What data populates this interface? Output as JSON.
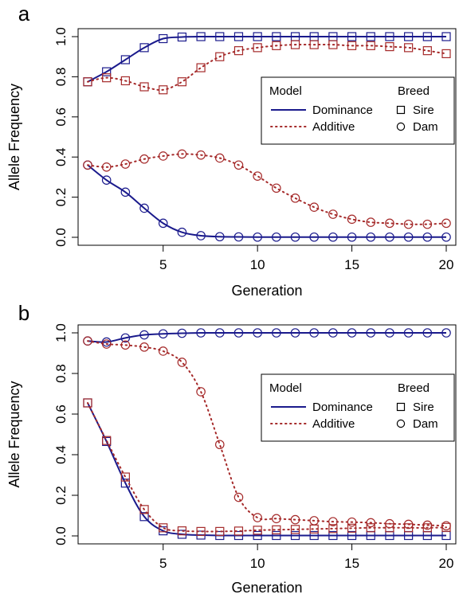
{
  "figure": {
    "colors": {
      "dominance": "#1a1a8c",
      "additive": "#a52a2a"
    }
  },
  "chart_data": [
    {
      "panel_label": "a",
      "type": "line",
      "xlabel": "Generation",
      "ylabel": "Allele Frequency",
      "xlim": [
        1,
        20
      ],
      "ylim": [
        0,
        1
      ],
      "xticks": [
        "5",
        "10",
        "15",
        "20"
      ],
      "yticks": [
        "0.0",
        "0.2",
        "0.4",
        "0.6",
        "0.8",
        "1.0"
      ],
      "grid": false,
      "legend": {
        "placement": "right",
        "model_title": "Model",
        "breed_title": "Breed",
        "model_items": [
          {
            "label": "Dominance",
            "style": "solid",
            "color": "#1a1a8c"
          },
          {
            "label": "Additive",
            "style": "dotted",
            "color": "#a52a2a"
          }
        ],
        "breed_items": [
          {
            "label": "Sire",
            "marker": "square"
          },
          {
            "label": "Dam",
            "marker": "circle"
          }
        ]
      },
      "x": [
        1,
        2,
        3,
        4,
        5,
        6,
        7,
        8,
        9,
        10,
        11,
        12,
        13,
        14,
        15,
        16,
        17,
        18,
        19,
        20
      ],
      "series": [
        {
          "model": "dominance",
          "breed": "sire",
          "color": "#1a1a8c",
          "style": "solid",
          "marker": "square",
          "values": [
            0.775,
            0.825,
            0.885,
            0.945,
            0.99,
            0.998,
            1,
            1,
            1,
            1,
            1,
            1,
            1,
            1,
            1,
            1,
            1,
            1,
            1,
            1
          ]
        },
        {
          "model": "additive",
          "breed": "sire",
          "color": "#a52a2a",
          "style": "dotted",
          "marker": "square",
          "values": [
            0.775,
            0.795,
            0.78,
            0.75,
            0.735,
            0.775,
            0.845,
            0.9,
            0.93,
            0.945,
            0.955,
            0.96,
            0.96,
            0.96,
            0.955,
            0.955,
            0.95,
            0.945,
            0.93,
            0.915
          ]
        },
        {
          "model": "dominance",
          "breed": "dam",
          "color": "#1a1a8c",
          "style": "solid",
          "marker": "circle",
          "values": [
            0.36,
            0.285,
            0.225,
            0.145,
            0.07,
            0.025,
            0.008,
            0.003,
            0.002,
            0.001,
            0.001,
            0.001,
            0.001,
            0.001,
            0.001,
            0.001,
            0.001,
            0.001,
            0.001,
            0.001
          ]
        },
        {
          "model": "additive",
          "breed": "dam",
          "color": "#a52a2a",
          "style": "dotted",
          "marker": "circle",
          "values": [
            0.36,
            0.35,
            0.365,
            0.39,
            0.405,
            0.415,
            0.41,
            0.395,
            0.36,
            0.305,
            0.245,
            0.195,
            0.15,
            0.115,
            0.09,
            0.075,
            0.07,
            0.065,
            0.065,
            0.07
          ]
        }
      ]
    },
    {
      "panel_label": "b",
      "type": "line",
      "xlabel": "Generation",
      "ylabel": "Allele Frequency",
      "xlim": [
        1,
        20
      ],
      "ylim": [
        0,
        1
      ],
      "xticks": [
        "5",
        "10",
        "15",
        "20"
      ],
      "yticks": [
        "0.0",
        "0.2",
        "0.4",
        "0.6",
        "0.8",
        "1.0"
      ],
      "grid": false,
      "legend": {
        "placement": "right",
        "model_title": "Model",
        "breed_title": "Breed",
        "model_items": [
          {
            "label": "Dominance",
            "style": "solid",
            "color": "#1a1a8c"
          },
          {
            "label": "Additive",
            "style": "dotted",
            "color": "#a52a2a"
          }
        ],
        "breed_items": [
          {
            "label": "Sire",
            "marker": "square"
          },
          {
            "label": "Dam",
            "marker": "circle"
          }
        ]
      },
      "x": [
        1,
        2,
        3,
        4,
        5,
        6,
        7,
        8,
        9,
        10,
        11,
        12,
        13,
        14,
        15,
        16,
        17,
        18,
        19,
        20
      ],
      "series": [
        {
          "model": "dominance",
          "breed": "dam",
          "color": "#1a1a8c",
          "style": "solid",
          "marker": "circle",
          "values": [
            0.96,
            0.955,
            0.975,
            0.99,
            0.995,
            0.998,
            1,
            1,
            1,
            1,
            1,
            1,
            1,
            1,
            1,
            1,
            1,
            1,
            1,
            1
          ]
        },
        {
          "model": "additive",
          "breed": "dam",
          "color": "#a52a2a",
          "style": "dotted",
          "marker": "circle",
          "values": [
            0.96,
            0.945,
            0.94,
            0.93,
            0.91,
            0.855,
            0.71,
            0.45,
            0.19,
            0.09,
            0.085,
            0.08,
            0.075,
            0.07,
            0.068,
            0.065,
            0.06,
            0.057,
            0.053,
            0.05
          ]
        },
        {
          "model": "dominance",
          "breed": "sire",
          "color": "#1a1a8c",
          "style": "solid",
          "marker": "square",
          "values": [
            0.655,
            0.465,
            0.26,
            0.095,
            0.025,
            0.008,
            0.004,
            0.002,
            0.002,
            0.002,
            0.002,
            0.002,
            0.002,
            0.002,
            0.002,
            0.002,
            0.002,
            0.002,
            0.002,
            0.002
          ]
        },
        {
          "model": "additive",
          "breed": "sire",
          "color": "#a52a2a",
          "style": "dotted",
          "marker": "square",
          "values": [
            0.655,
            0.47,
            0.29,
            0.13,
            0.04,
            0.025,
            0.022,
            0.022,
            0.024,
            0.028,
            0.03,
            0.032,
            0.034,
            0.036,
            0.038,
            0.04,
            0.04,
            0.04,
            0.04,
            0.042
          ]
        }
      ]
    }
  ]
}
